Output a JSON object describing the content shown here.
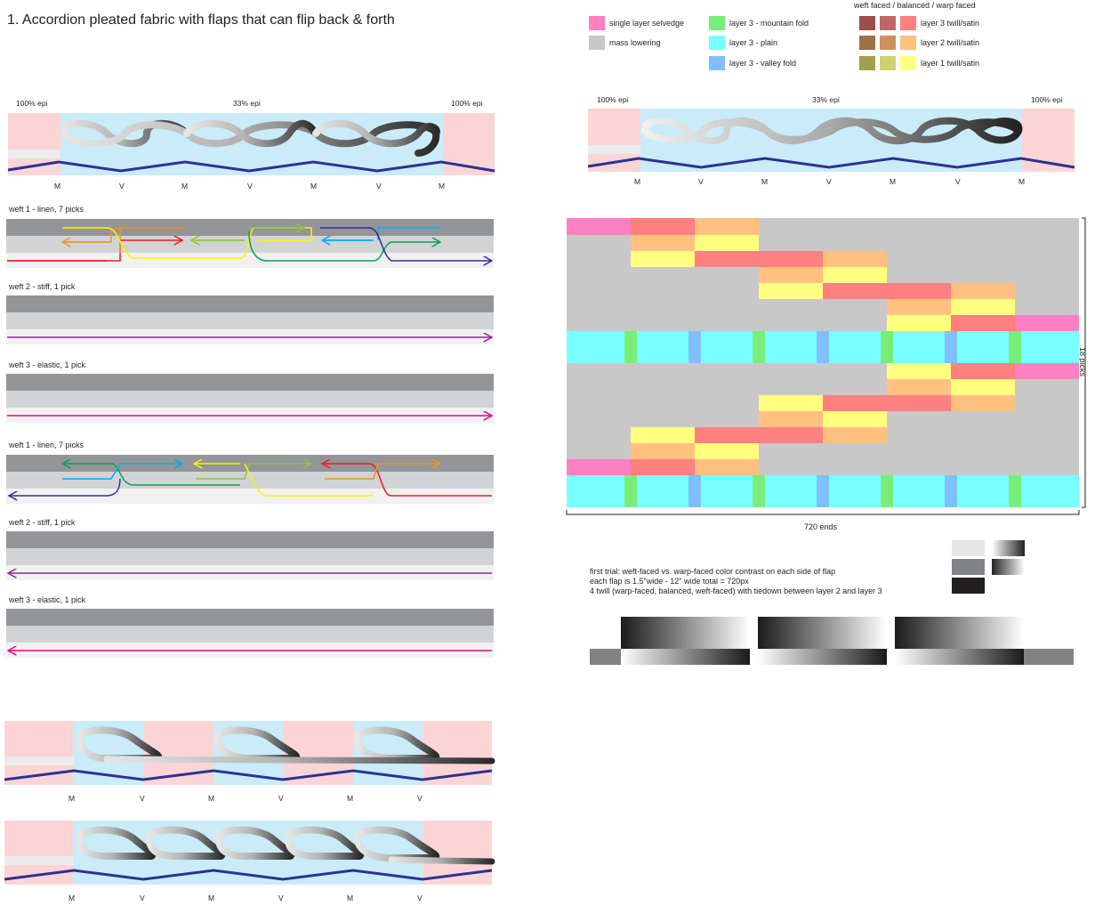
{
  "title": "1.  Accordion pleated fabric with flaps that can flip back & forth",
  "colors": {
    "selvedge": "#ff80c0",
    "mass_lowering": "#c8c8c8",
    "mountain_fold": "#78ee78",
    "plain": "#78ffff",
    "valley_fold": "#80bfff",
    "layer3": "#ff8080",
    "layer2": "#ffc080",
    "layer1": "#ffff80",
    "layer3_weft": "#9e4c4c",
    "layer3_bal": "#c06666",
    "layer2_weft": "#9c7048",
    "layer2_bal": "#cc9060",
    "layer1_weft": "#a0a050",
    "layer1_bal": "#d0d070",
    "epi_pink": "#fbd5d6",
    "epi_blue": "#c9ecf8",
    "zigzag": "#2e3192"
  },
  "legend": {
    "header": "weft faced / balanced / warp faced",
    "items": [
      {
        "label": "single layer selvedge"
      },
      {
        "label": "mass lowering"
      },
      {
        "label": "layer 3 - mountain fold"
      },
      {
        "label": "layer 3 - plain"
      },
      {
        "label": "layer 3 - valley fold"
      },
      {
        "label": "layer 3 twill/satin"
      },
      {
        "label": "layer 2 twill/satin"
      },
      {
        "label": "layer 1 twill/satin"
      }
    ]
  },
  "epi": {
    "left": "100% epi",
    "mid": "33% epi",
    "right": "100% epi"
  },
  "folds": [
    "M",
    "V",
    "M",
    "V",
    "M",
    "V",
    "M"
  ],
  "folds_short": [
    "M",
    "V",
    "M",
    "V",
    "M",
    "V"
  ],
  "wefts": [
    {
      "label": "weft 1 - linen, 7 picks"
    },
    {
      "label": "weft 2 - stiff, 1 pick"
    },
    {
      "label": "weft 3 - elastic, 1 pick"
    },
    {
      "label": "weft 1 - linen, 7 picks"
    },
    {
      "label": "weft 2 - stiff, 1 pick"
    },
    {
      "label": "weft 3 - elastic, 1 pick"
    }
  ],
  "grid": {
    "picks_label": "18 picks",
    "ends_label": "720 ends"
  },
  "notes": [
    "first trial: weft-faced vs. warp-faced color contrast on each side of flap",
    "each flap is 1.5\"wide - 12\" wide total = 720px",
    "4 twill (warp-faced, balanced, weft-faced) with tiedown between layer 2 and layer 3"
  ]
}
